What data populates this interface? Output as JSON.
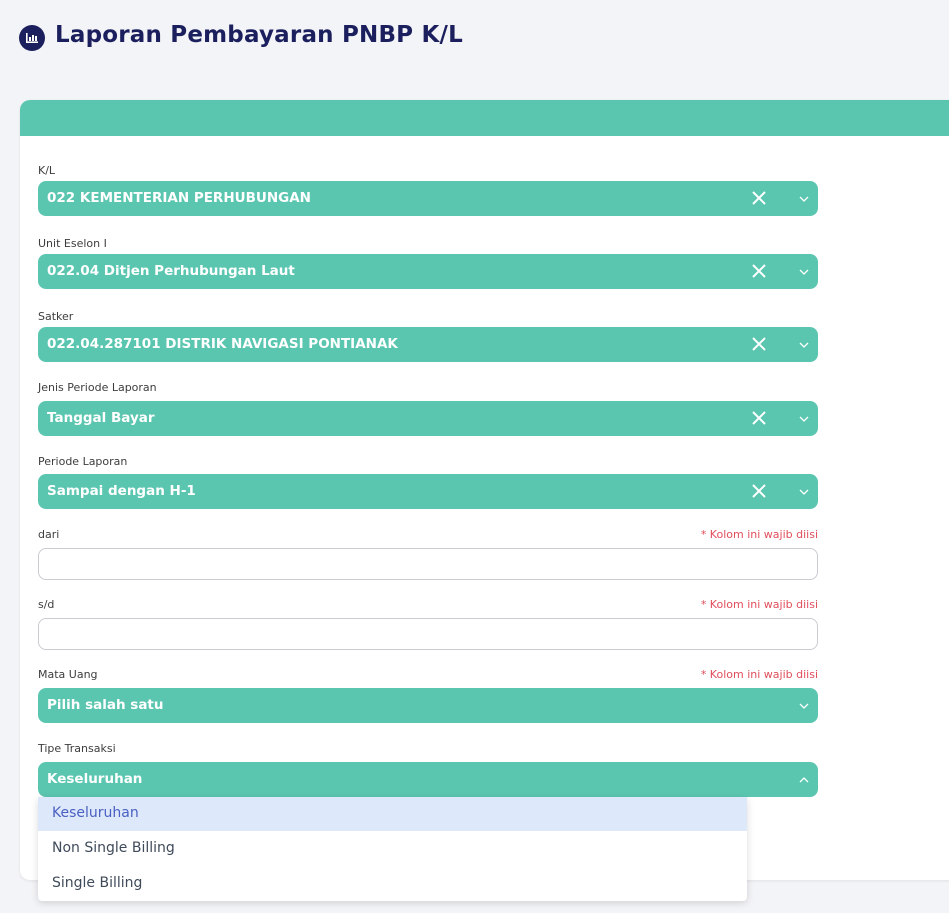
{
  "header": {
    "title": "Laporan Pembayaran PNBP K/L"
  },
  "form": {
    "fields": [
      {
        "label": "K/L",
        "value": "022 KEMENTERIAN PERHUBUNGAN"
      },
      {
        "label": "Unit Eselon I",
        "value": "022.04 Ditjen Perhubungan Laut"
      },
      {
        "label": "Satker",
        "value": "022.04.287101 DISTRIK NAVIGASI PONTIANAK"
      },
      {
        "label": "Jenis Periode Laporan",
        "value": "Tanggal Bayar"
      },
      {
        "label": "Periode Laporan",
        "value": "Sampai dengan H-1"
      },
      {
        "label": "dari",
        "required_note": "* Kolom ini wajib diisi"
      },
      {
        "label": "s/d",
        "required_note": "* Kolom ini wajib diisi"
      },
      {
        "label": "Mata Uang",
        "required_note": "* Kolom ini wajib diisi",
        "value": "Pilih salah satu"
      },
      {
        "label": "Tipe Transaksi",
        "value": "Keseluruhan"
      }
    ]
  },
  "dropdown": {
    "options": [
      "Keseluruhan",
      "Non Single Billing",
      "Single Billing"
    ]
  }
}
